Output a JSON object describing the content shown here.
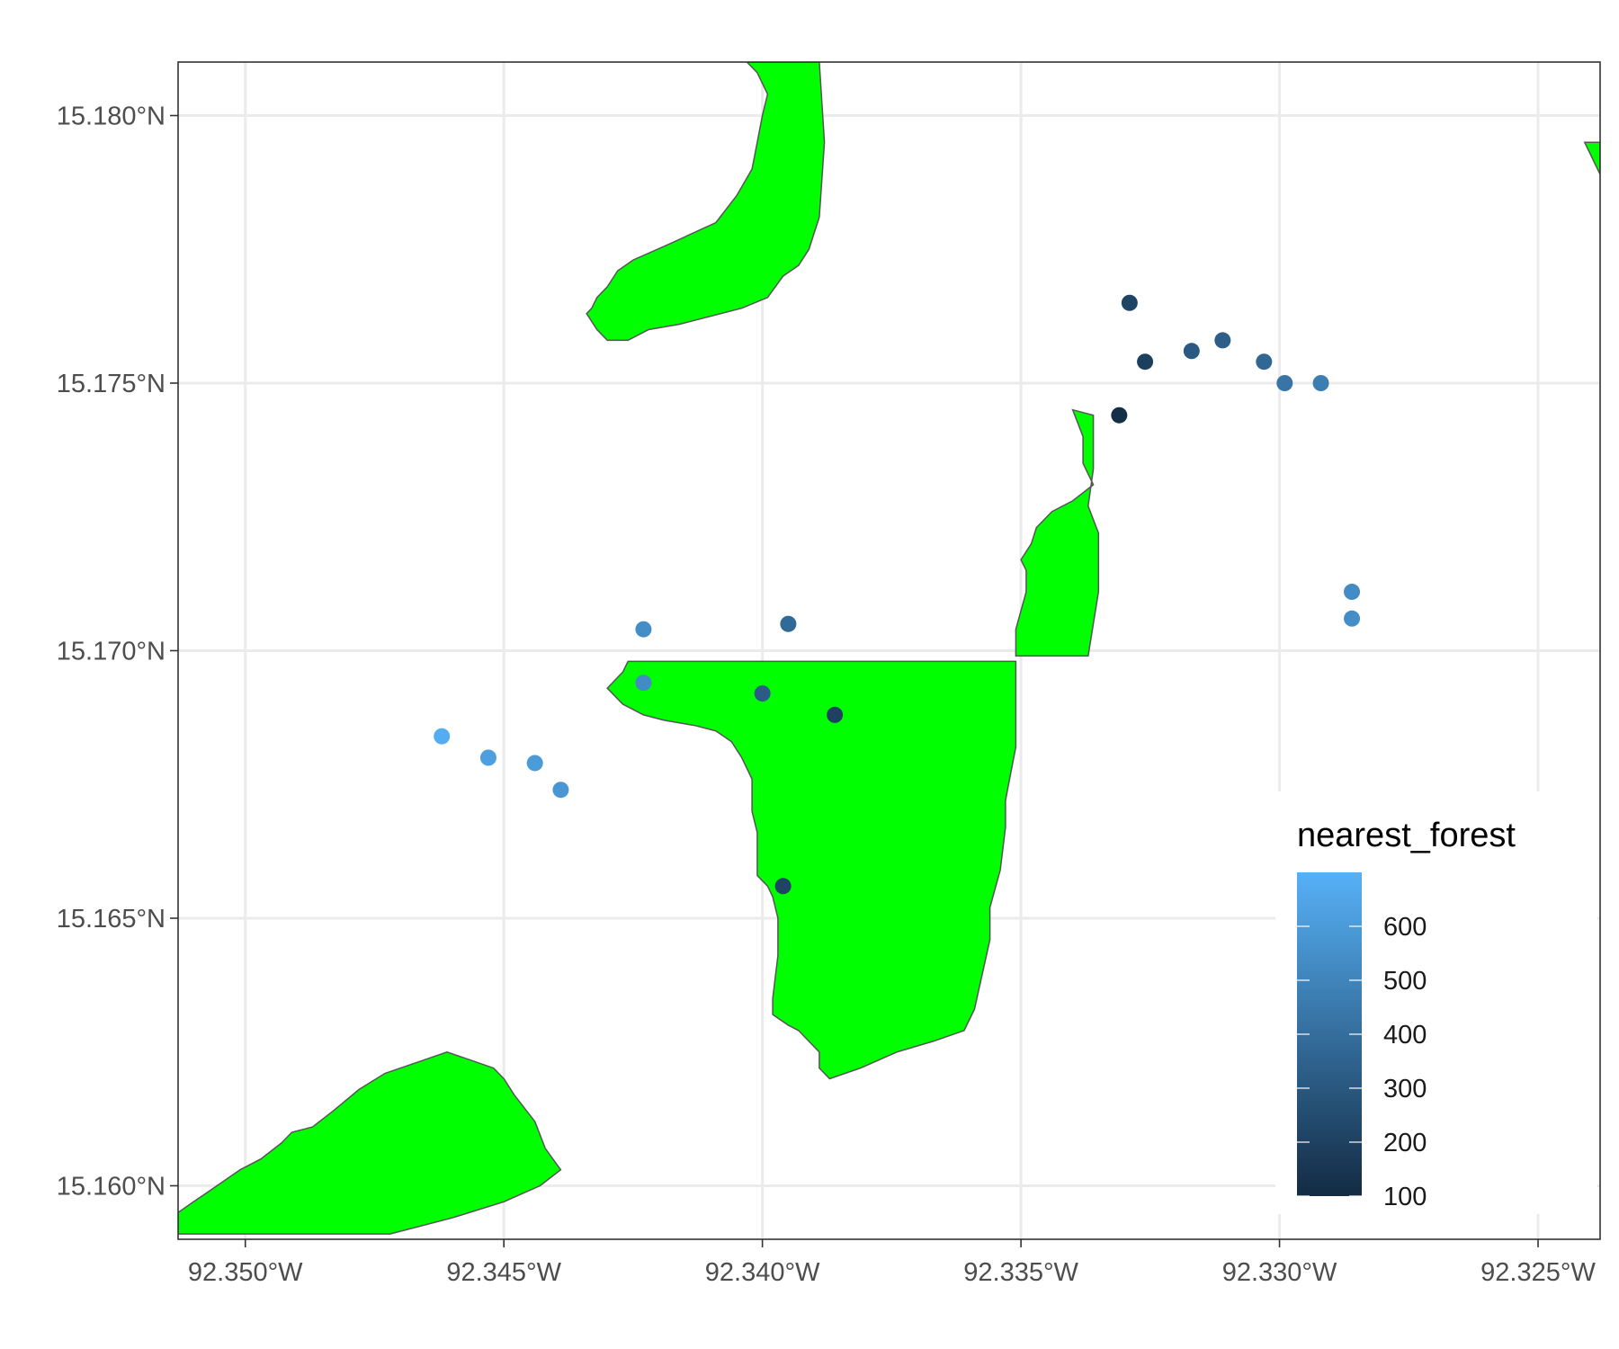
{
  "chart_data": {
    "type": "map",
    "x_axis": {
      "range": [
        -92.3513,
        -92.3238
      ],
      "ticks": [
        {
          "value": -92.35,
          "label": "92.350°W"
        },
        {
          "value": -92.345,
          "label": "92.345°W"
        },
        {
          "value": -92.34,
          "label": "92.340°W"
        },
        {
          "value": -92.335,
          "label": "92.335°W"
        },
        {
          "value": -92.33,
          "label": "92.330°W"
        },
        {
          "value": -92.325,
          "label": "92.325°W"
        }
      ]
    },
    "y_axis": {
      "range": [
        15.159,
        15.181
      ],
      "ticks": [
        {
          "value": 15.16,
          "label": "15.160°N"
        },
        {
          "value": 15.165,
          "label": "15.165°N"
        },
        {
          "value": 15.17,
          "label": "15.170°N"
        },
        {
          "value": 15.175,
          "label": "15.175°N"
        },
        {
          "value": 15.18,
          "label": "15.180°N"
        }
      ]
    },
    "grid": true,
    "forest_color": "#00ff00",
    "forest_border_color": "#555555",
    "forest_polygons": [
      [
        [
          -92.3403,
          15.181
        ],
        [
          -92.3389,
          15.181
        ],
        [
          -92.3388,
          15.1795
        ],
        [
          -92.3389,
          15.1781
        ],
        [
          -92.339,
          15.1778
        ],
        [
          -92.3391,
          15.1775
        ],
        [
          -92.3393,
          15.1772
        ],
        [
          -92.3396,
          15.177
        ],
        [
          -92.3399,
          15.1766
        ],
        [
          -92.3404,
          15.1764
        ],
        [
          -92.3416,
          15.1761
        ],
        [
          -92.3422,
          15.176
        ],
        [
          -92.3426,
          15.1758
        ],
        [
          -92.343,
          15.1758
        ],
        [
          -92.3432,
          15.176
        ],
        [
          -92.3434,
          15.1763
        ],
        [
          -92.3433,
          15.1764
        ],
        [
          -92.3432,
          15.1766
        ],
        [
          -92.343,
          15.1768
        ],
        [
          -92.3428,
          15.1771
        ],
        [
          -92.3425,
          15.1773
        ],
        [
          -92.3418,
          15.1776
        ],
        [
          -92.3409,
          15.178
        ],
        [
          -92.3405,
          15.1785
        ],
        [
          -92.3402,
          15.179
        ],
        [
          -92.3401,
          15.1795
        ],
        [
          -92.34,
          15.18
        ],
        [
          -92.3399,
          15.1804
        ],
        [
          -92.3401,
          15.1808
        ],
        [
          -92.3403,
          15.181
        ]
      ],
      [
        [
          -92.334,
          15.1745
        ],
        [
          -92.3336,
          15.1744
        ],
        [
          -92.3336,
          15.1734
        ],
        [
          -92.3337,
          15.1727
        ],
        [
          -92.3335,
          15.1722
        ],
        [
          -92.3335,
          15.1711
        ],
        [
          -92.3337,
          15.1699
        ],
        [
          -92.3343,
          15.1699
        ],
        [
          -92.3351,
          15.1699
        ],
        [
          -92.3351,
          15.1704
        ],
        [
          -92.3349,
          15.1711
        ],
        [
          -92.3349,
          15.1715
        ],
        [
          -92.335,
          15.1717
        ],
        [
          -92.3348,
          15.172
        ],
        [
          -92.3347,
          15.1723
        ],
        [
          -92.3344,
          15.1726
        ],
        [
          -92.334,
          15.1728
        ],
        [
          -92.3336,
          15.1731
        ],
        [
          -92.3338,
          15.1735
        ],
        [
          -92.3338,
          15.174
        ],
        [
          -92.334,
          15.1745
        ]
      ],
      [
        [
          -92.3351,
          15.1698
        ],
        [
          -92.3351,
          15.169
        ],
        [
          -92.3351,
          15.1682
        ],
        [
          -92.3352,
          15.1677
        ],
        [
          -92.3353,
          15.1672
        ],
        [
          -92.3353,
          15.1667
        ],
        [
          -92.3354,
          15.1659
        ],
        [
          -92.3356,
          15.1652
        ],
        [
          -92.3356,
          15.1646
        ],
        [
          -92.3359,
          15.1633
        ],
        [
          -92.3361,
          15.1629
        ],
        [
          -92.3367,
          15.1627
        ],
        [
          -92.3374,
          15.1625
        ],
        [
          -92.3381,
          15.1622
        ],
        [
          -92.3387,
          15.162
        ],
        [
          -92.3389,
          15.1622
        ],
        [
          -92.3389,
          15.1625
        ],
        [
          -92.3391,
          15.1627
        ],
        [
          -92.3393,
          15.1629
        ],
        [
          -92.3395,
          15.163
        ],
        [
          -92.3398,
          15.1632
        ],
        [
          -92.3398,
          15.1635
        ],
        [
          -92.3397,
          15.1643
        ],
        [
          -92.3397,
          15.165
        ],
        [
          -92.3398,
          15.1654
        ],
        [
          -92.3399,
          15.1656
        ],
        [
          -92.3401,
          15.1658
        ],
        [
          -92.3401,
          15.1662
        ],
        [
          -92.3401,
          15.1666
        ],
        [
          -92.3402,
          15.167
        ],
        [
          -92.3402,
          15.1676
        ],
        [
          -92.3404,
          15.168
        ],
        [
          -92.3406,
          15.1683
        ],
        [
          -92.3409,
          15.1685
        ],
        [
          -92.3413,
          15.1686
        ],
        [
          -92.3419,
          15.1687
        ],
        [
          -92.3423,
          15.1688
        ],
        [
          -92.3427,
          15.169
        ],
        [
          -92.343,
          15.1693
        ],
        [
          -92.3427,
          15.1696
        ],
        [
          -92.3426,
          15.1698
        ],
        [
          -92.3351,
          15.1698
        ]
      ],
      [
        [
          -92.3472,
          15.1591
        ],
        [
          -92.3513,
          15.1591
        ],
        [
          -92.3513,
          15.1595
        ],
        [
          -92.351,
          15.1597
        ],
        [
          -92.3507,
          15.1599
        ],
        [
          -92.3504,
          15.1601
        ],
        [
          -92.3501,
          15.1603
        ],
        [
          -92.3497,
          15.1605
        ],
        [
          -92.3493,
          15.1608
        ],
        [
          -92.3491,
          15.161
        ],
        [
          -92.3487,
          15.1611
        ],
        [
          -92.3483,
          15.1614
        ],
        [
          -92.3478,
          15.1618
        ],
        [
          -92.3473,
          15.1621
        ],
        [
          -92.3467,
          15.1623
        ],
        [
          -92.3461,
          15.1625
        ],
        [
          -92.3458,
          15.1624
        ],
        [
          -92.3452,
          15.1622
        ],
        [
          -92.345,
          15.162
        ],
        [
          -92.3448,
          15.1617
        ],
        [
          -92.3444,
          15.1612
        ],
        [
          -92.3442,
          15.1607
        ],
        [
          -92.3439,
          15.1603
        ],
        [
          -92.3443,
          15.16
        ],
        [
          -92.345,
          15.1597
        ],
        [
          -92.346,
          15.1594
        ],
        [
          -92.3472,
          15.1591
        ]
      ],
      [
        [
          -92.3238,
          15.1795
        ],
        [
          -92.3238,
          15.1789
        ],
        [
          -92.324,
          15.1793
        ],
        [
          -92.3241,
          15.1795
        ],
        [
          -92.3238,
          15.1795
        ]
      ]
    ],
    "color_scale": {
      "title": "nearest_forest",
      "range": [
        100,
        700
      ],
      "low_color": "#132b43",
      "high_color": "#56b1f7",
      "ticks": [
        100,
        200,
        300,
        400,
        500,
        600
      ]
    },
    "points": [
      {
        "lon": -92.3329,
        "lat": 15.1765,
        "nearest_forest": 210
      },
      {
        "lon": -92.3326,
        "lat": 15.1754,
        "nearest_forest": 190
      },
      {
        "lon": -92.3317,
        "lat": 15.1756,
        "nearest_forest": 310
      },
      {
        "lon": -92.3311,
        "lat": 15.1758,
        "nearest_forest": 330
      },
      {
        "lon": -92.3303,
        "lat": 15.1754,
        "nearest_forest": 370
      },
      {
        "lon": -92.3299,
        "lat": 15.175,
        "nearest_forest": 430
      },
      {
        "lon": -92.3292,
        "lat": 15.175,
        "nearest_forest": 470
      },
      {
        "lon": -92.3331,
        "lat": 15.1744,
        "nearest_forest": 120
      },
      {
        "lon": -92.3286,
        "lat": 15.1711,
        "nearest_forest": 530
      },
      {
        "lon": -92.3286,
        "lat": 15.1706,
        "nearest_forest": 540
      },
      {
        "lon": -92.3423,
        "lat": 15.1704,
        "nearest_forest": 540
      },
      {
        "lon": -92.3395,
        "lat": 15.1705,
        "nearest_forest": 380
      },
      {
        "lon": -92.3423,
        "lat": 15.1694,
        "nearest_forest": 530
      },
      {
        "lon": -92.34,
        "lat": 15.1692,
        "nearest_forest": 320
      },
      {
        "lon": -92.3386,
        "lat": 15.1688,
        "nearest_forest": 200
      },
      {
        "lon": -92.3462,
        "lat": 15.1684,
        "nearest_forest": 680
      },
      {
        "lon": -92.3453,
        "lat": 15.168,
        "nearest_forest": 620
      },
      {
        "lon": -92.3444,
        "lat": 15.1679,
        "nearest_forest": 600
      },
      {
        "lon": -92.3439,
        "lat": 15.1674,
        "nearest_forest": 580
      },
      {
        "lon": -92.3396,
        "lat": 15.1656,
        "nearest_forest": 210
      }
    ]
  }
}
